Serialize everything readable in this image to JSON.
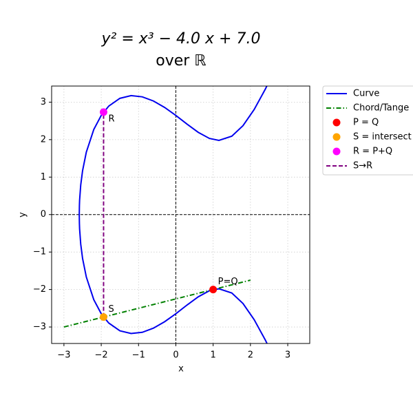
{
  "chart_data": {
    "type": "line",
    "title": "y² = x³ − 4.0 x + 7.0",
    "subtitle": "over ℝ",
    "x_label": "x",
    "y_label": "y",
    "xlim": [
      -3.33,
      3.59
    ],
    "ylim": [
      -3.44,
      3.43
    ],
    "xticks": [
      {
        "value": -3,
        "label": "−3"
      },
      {
        "value": -2,
        "label": "−2"
      },
      {
        "value": -1,
        "label": "−1"
      },
      0,
      1,
      2,
      3
    ],
    "yticks": [
      {
        "value": -3,
        "label": "−3"
      },
      {
        "value": -2,
        "label": "−2"
      },
      {
        "value": -1,
        "label": "−1"
      },
      0,
      1,
      2,
      3
    ],
    "grid": true,
    "zero_lines": true,
    "legend": "outside-upper-right",
    "series": [
      {
        "name": "Curve",
        "kind": "line",
        "color": "#0000ee",
        "style": "solid",
        "x": [
          -2.589,
          -2.585,
          -2.58,
          -2.55,
          -2.5,
          -2.4,
          -2.2,
          -2.0,
          -1.8,
          -1.5,
          -1.2,
          -0.9,
          -0.6,
          -0.3,
          0,
          0.3,
          0.6,
          0.9,
          1.155,
          1.5,
          1.8,
          2.1,
          2.4,
          2.5,
          null,
          -2.589,
          -2.585,
          -2.58,
          -2.55,
          -2.5,
          -2.4,
          -2.2,
          -2.0,
          -1.8,
          -1.5,
          -1.2,
          -0.9,
          -0.6,
          -0.3,
          0,
          0.3,
          0.6,
          0.9,
          1.155,
          1.5,
          1.8,
          2.1,
          2.4,
          2.5
        ],
        "y": [
          0,
          0.24,
          0.382,
          0.787,
          1.173,
          1.666,
          2.27,
          2.646,
          2.893,
          3.102,
          3.174,
          3.142,
          3.031,
          2.859,
          2.646,
          2.414,
          2.195,
          2.032,
          1.98,
          2.092,
          2.373,
          2.804,
          3.35,
          3.553,
          null,
          0,
          -0.24,
          -0.382,
          -0.787,
          -1.173,
          -1.666,
          -2.27,
          -2.646,
          -2.893,
          -3.102,
          -3.174,
          -3.142,
          -3.031,
          -2.859,
          -2.646,
          -2.414,
          -2.195,
          -2.032,
          -1.98,
          -2.092,
          -2.373,
          -2.804,
          -3.35,
          -3.553
        ]
      },
      {
        "name": "Chord/Tange",
        "kind": "line",
        "color": "#008000",
        "style": "dashdot",
        "x": [
          -3,
          2
        ],
        "y": [
          -3,
          -1.75
        ]
      },
      {
        "name": "P = Q",
        "kind": "point",
        "color": "#ff0000",
        "label": "P=Q",
        "x": [
          1
        ],
        "y": [
          -2
        ]
      },
      {
        "name": "S = intersect",
        "kind": "point",
        "color": "#ffa500",
        "label": "S",
        "x": [
          -1.9375
        ],
        "y": [
          -2.734
        ]
      },
      {
        "name": "R = P+Q",
        "kind": "point",
        "color": "#ff00ff",
        "label": "R",
        "x": [
          -1.9375
        ],
        "y": [
          2.734
        ]
      },
      {
        "name": "S→R",
        "kind": "line",
        "color": "#800080",
        "style": "dashed",
        "x": [
          -1.9375,
          -1.9375
        ],
        "y": [
          -2.734,
          2.734
        ]
      }
    ]
  }
}
